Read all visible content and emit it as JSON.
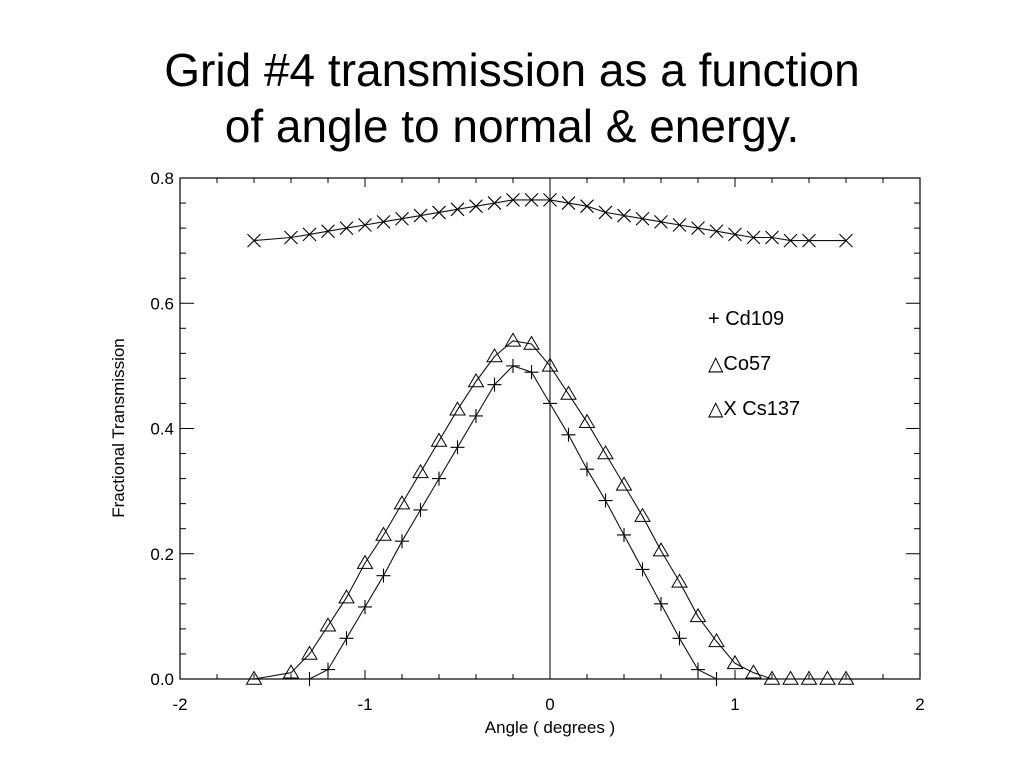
{
  "slide": {
    "title_line1": "Grid #4 transmission as a function",
    "title_line2": "of angle to normal & energy."
  },
  "chart_data": {
    "type": "line",
    "title": "Grid #4 transmission as a function of angle to normal & energy.",
    "xlabel": "Angle ( degrees )",
    "ylabel": "Fractional Transmission",
    "xlim": [
      -2,
      2
    ],
    "ylim": [
      0,
      0.8
    ],
    "xticks": [
      -2,
      -1,
      0,
      1,
      2
    ],
    "xtick_labels": [
      "-2",
      "-1",
      "0",
      "1",
      "2"
    ],
    "yticks": [
      0,
      0.2,
      0.4,
      0.6,
      0.8
    ],
    "ytick_labels": [
      "0.0",
      "0.2",
      "0.4",
      "0.6",
      "0.8"
    ],
    "grid": false,
    "reference_line_x": 0,
    "legend": {
      "placement": "right",
      "entries": [
        "+ Cd109",
        "△Co57",
        "△X Cs137"
      ]
    },
    "series": [
      {
        "name": "X Cs137",
        "marker": "x",
        "x": [
          -1.6,
          -1.4,
          -1.3,
          -1.2,
          -1.1,
          -1.0,
          -0.9,
          -0.8,
          -0.7,
          -0.6,
          -0.5,
          -0.4,
          -0.3,
          -0.2,
          -0.1,
          0.0,
          0.1,
          0.2,
          0.3,
          0.4,
          0.5,
          0.6,
          0.7,
          0.8,
          0.9,
          1.0,
          1.1,
          1.2,
          1.3,
          1.4,
          1.6
        ],
        "values": [
          0.7,
          0.705,
          0.71,
          0.715,
          0.72,
          0.725,
          0.73,
          0.735,
          0.74,
          0.745,
          0.75,
          0.755,
          0.76,
          0.765,
          0.765,
          0.765,
          0.76,
          0.755,
          0.745,
          0.74,
          0.735,
          0.73,
          0.725,
          0.72,
          0.715,
          0.71,
          0.705,
          0.705,
          0.7,
          0.7,
          0.7
        ]
      },
      {
        "name": "Co57",
        "marker": "triangle",
        "x": [
          -1.6,
          -1.4,
          -1.3,
          -1.2,
          -1.1,
          -1.0,
          -0.9,
          -0.8,
          -0.7,
          -0.6,
          -0.5,
          -0.4,
          -0.3,
          -0.2,
          -0.1,
          0.0,
          0.1,
          0.2,
          0.3,
          0.4,
          0.5,
          0.6,
          0.7,
          0.8,
          0.9,
          1.0,
          1.1,
          1.2,
          1.3,
          1.4,
          1.5,
          1.6
        ],
        "values": [
          0.0,
          0.01,
          0.04,
          0.085,
          0.13,
          0.185,
          0.23,
          0.28,
          0.33,
          0.38,
          0.43,
          0.475,
          0.515,
          0.54,
          0.535,
          0.5,
          0.455,
          0.41,
          0.36,
          0.31,
          0.26,
          0.205,
          0.155,
          0.1,
          0.06,
          0.025,
          0.01,
          0.0,
          0.0,
          0.0,
          0.0,
          0.0
        ]
      },
      {
        "name": "Cd109",
        "marker": "plus",
        "x": [
          -1.3,
          -1.2,
          -1.1,
          -1.0,
          -0.9,
          -0.8,
          -0.7,
          -0.6,
          -0.5,
          -0.4,
          -0.3,
          -0.2,
          -0.1,
          0.0,
          0.1,
          0.2,
          0.3,
          0.4,
          0.5,
          0.6,
          0.7,
          0.8,
          0.9
        ],
        "values": [
          0.0,
          0.015,
          0.065,
          0.115,
          0.165,
          0.22,
          0.27,
          0.32,
          0.37,
          0.42,
          0.47,
          0.5,
          0.49,
          0.44,
          0.39,
          0.335,
          0.285,
          0.23,
          0.175,
          0.12,
          0.065,
          0.015,
          0.0
        ]
      }
    ]
  }
}
